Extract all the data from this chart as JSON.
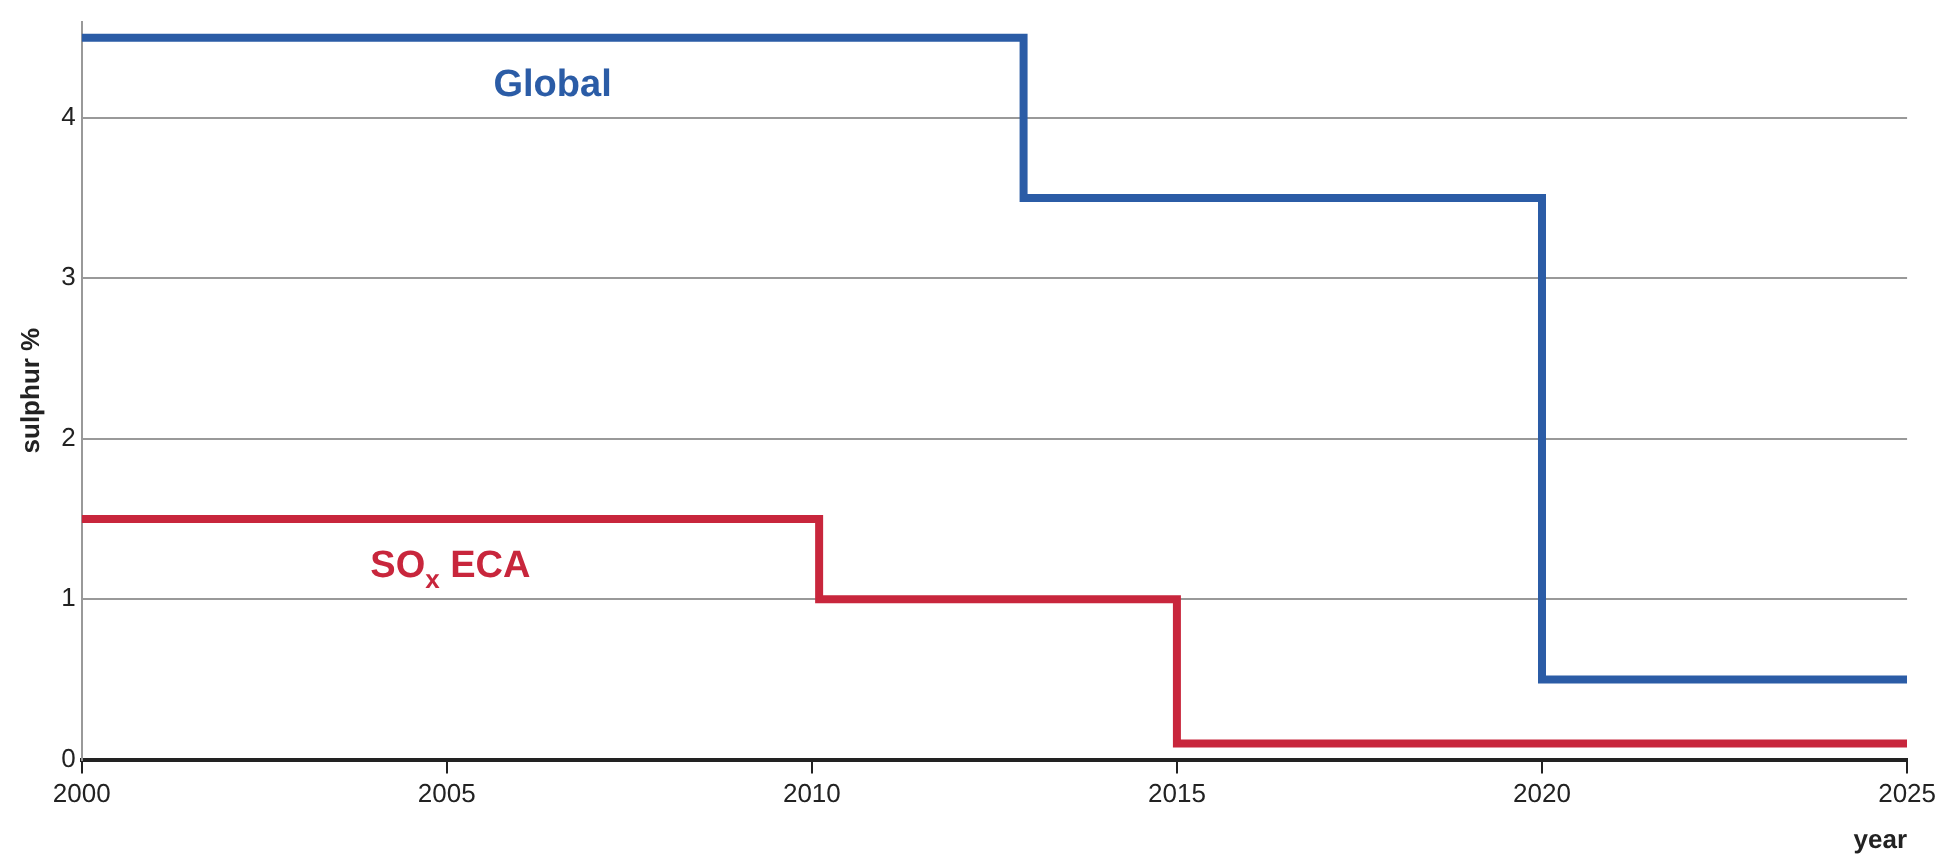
{
  "chart_data": {
    "type": "step",
    "xlabel": "year",
    "ylabel": "sulphur %",
    "xlim": [
      2000,
      2025
    ],
    "xticks": [
      2000,
      2005,
      2010,
      2015,
      2020,
      2025
    ],
    "ylim": [
      0,
      4.6
    ],
    "yticks": [
      0,
      1,
      2,
      3,
      4
    ],
    "grid": "y",
    "legend": false,
    "series": [
      {
        "name": "Global",
        "color": "#2b5ca6",
        "x": [
          2000,
          2012.9,
          2020,
          2025
        ],
        "values": [
          4.5,
          3.5,
          0.5,
          0.5
        ]
      },
      {
        "name": "SO$_{x}$ ECA",
        "color": "#c8263c",
        "x": [
          2000,
          2010.1,
          2015,
          2025
        ],
        "values": [
          1.5,
          1.0,
          0.1,
          0.1
        ]
      }
    ]
  }
}
